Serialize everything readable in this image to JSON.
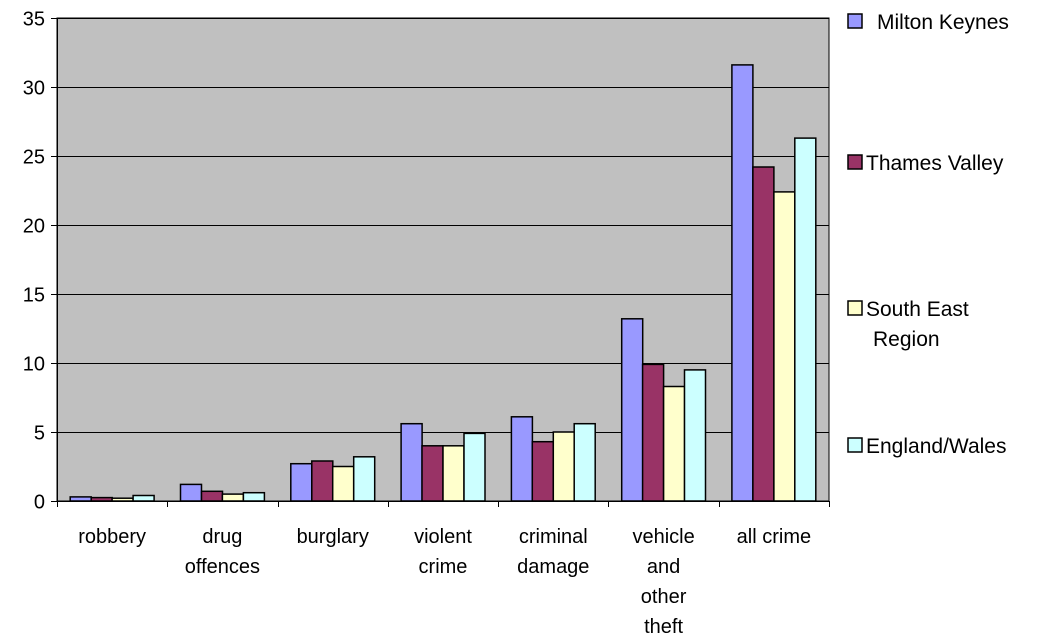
{
  "chart_data": {
    "type": "bar",
    "title": "",
    "xlabel": "",
    "ylabel": "",
    "ylim": [
      0,
      35
    ],
    "yticks": [
      0,
      5,
      10,
      15,
      20,
      25,
      30,
      35
    ],
    "grid": true,
    "legend_position": "right",
    "categories": [
      [
        "robbery"
      ],
      [
        "drug",
        "offences"
      ],
      [
        "burglary"
      ],
      [
        "violent",
        "crime"
      ],
      [
        "criminal",
        "damage"
      ],
      [
        "vehicle",
        "and",
        "other",
        "theft"
      ],
      [
        "all crime"
      ]
    ],
    "series": [
      {
        "name": [
          "Milton Keynes"
        ],
        "color": "#9999ff",
        "values": [
          0.3,
          1.2,
          2.7,
          5.6,
          6.1,
          13.2,
          31.6
        ]
      },
      {
        "name": [
          "Thames Valley"
        ],
        "color": "#993366",
        "values": [
          0.25,
          0.7,
          2.9,
          4.0,
          4.3,
          9.9,
          24.2
        ]
      },
      {
        "name": [
          "South East",
          "Region"
        ],
        "color": "#ffffcc",
        "values": [
          0.2,
          0.5,
          2.5,
          4.0,
          5.0,
          8.3,
          22.4
        ]
      },
      {
        "name": [
          "England/Wales"
        ],
        "color": "#ccffff",
        "values": [
          0.4,
          0.6,
          3.2,
          4.9,
          5.6,
          9.5,
          26.3
        ]
      }
    ],
    "plot_background": "#c0c0c0"
  }
}
